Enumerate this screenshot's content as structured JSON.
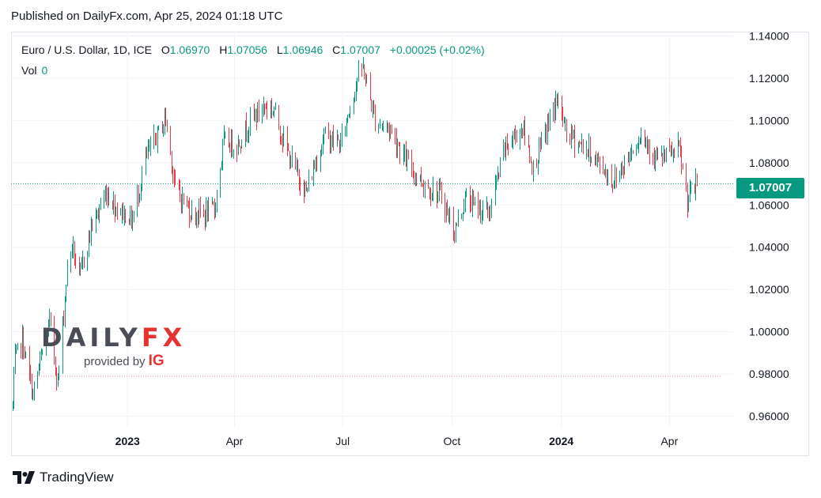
{
  "published": "Published on DailyFx.com, Apr 25, 2024 01:18 UTC",
  "legend": {
    "symbol": "Euro / U.S. Dollar, 1D, ICE",
    "o_label": "O",
    "o_value": "1.06970",
    "h_label": "H",
    "h_value": "1.07056",
    "l_label": "L",
    "l_value": "1.06946",
    "c_label": "C",
    "c_value": "1.07007",
    "change": "+0.00025 (+0.02%)"
  },
  "vol": {
    "label": "Vol",
    "value": "0"
  },
  "last_price_tag": "1.07007",
  "logo": {
    "brand_a": "DAILY",
    "brand_b": "FX",
    "provided_by": "provided by",
    "ig": "IG"
  },
  "footer": {
    "brand": "TradingView"
  },
  "colors": {
    "up": "#089981",
    "down": "#f23645",
    "grid": "#f0f3fa",
    "text": "#131722"
  },
  "chart_data": {
    "type": "candlestick",
    "title": "",
    "xlabel": "",
    "ylabel": "",
    "ylim": [
      0.955,
      1.142
    ],
    "y_ticks": [
      "1.14000",
      "1.12000",
      "1.10000",
      "1.08000",
      "1.06000",
      "1.04000",
      "1.02000",
      "1.00000",
      "0.98000",
      "0.96000"
    ],
    "y_tick_values": [
      1.14,
      1.12,
      1.1,
      1.08,
      1.06,
      1.04,
      1.02,
      1.0,
      0.98,
      0.96
    ],
    "x_ticks": [
      {
        "label": "2023",
        "date": "2023-01-01",
        "bold": true
      },
      {
        "label": "Apr",
        "date": "2023-04-01",
        "bold": false
      },
      {
        "label": "Jul",
        "date": "2023-07-01",
        "bold": false
      },
      {
        "label": "Oct",
        "date": "2023-10-01",
        "bold": false
      },
      {
        "label": "2024",
        "date": "2024-01-01",
        "bold": true
      },
      {
        "label": "Apr",
        "date": "2024-04-01",
        "bold": false
      }
    ],
    "x_range": [
      "2022-09-25",
      "2024-05-24"
    ],
    "last_close": 1.07007,
    "reference_low": 0.979,
    "price_path": [
      [
        "2022-09-26",
        0.965
      ],
      [
        "2022-09-28",
        0.987
      ],
      [
        "2022-10-04",
        0.996
      ],
      [
        "2022-10-13",
        0.97
      ],
      [
        "2022-10-21",
        0.99
      ],
      [
        "2022-10-27",
        1.005
      ],
      [
        "2022-11-03",
        0.976
      ],
      [
        "2022-11-11",
        1.03
      ],
      [
        "2022-11-15",
        1.041
      ],
      [
        "2022-11-21",
        1.025
      ],
      [
        "2022-12-01",
        1.049
      ],
      [
        "2022-12-14",
        1.066
      ],
      [
        "2022-12-22",
        1.059
      ],
      [
        "2023-01-05",
        1.053
      ],
      [
        "2023-01-16",
        1.082
      ],
      [
        "2023-02-02",
        1.101
      ],
      [
        "2023-02-10",
        1.068
      ],
      [
        "2023-02-24",
        1.056
      ],
      [
        "2023-03-08",
        1.056
      ],
      [
        "2023-03-15",
        1.058
      ],
      [
        "2023-03-23",
        1.09
      ],
      [
        "2023-04-03",
        1.088
      ],
      [
        "2023-04-14",
        1.1
      ],
      [
        "2023-04-26",
        1.107
      ],
      [
        "2023-05-04",
        1.105
      ],
      [
        "2023-05-15",
        1.085
      ],
      [
        "2023-05-31",
        1.066
      ],
      [
        "2023-06-15",
        1.093
      ],
      [
        "2023-06-29",
        1.089
      ],
      [
        "2023-07-13",
        1.12
      ],
      [
        "2023-07-18",
        1.125
      ],
      [
        "2023-07-28",
        1.1
      ],
      [
        "2023-08-10",
        1.096
      ],
      [
        "2023-08-24",
        1.08
      ],
      [
        "2023-09-07",
        1.07
      ],
      [
        "2023-09-22",
        1.064
      ],
      [
        "2023-10-03",
        1.047
      ],
      [
        "2023-10-12",
        1.063
      ],
      [
        "2023-10-20",
        1.06
      ],
      [
        "2023-11-01",
        1.056
      ],
      [
        "2023-11-14",
        1.087
      ],
      [
        "2023-11-29",
        1.097
      ],
      [
        "2023-12-08",
        1.077
      ],
      [
        "2023-12-28",
        1.11
      ],
      [
        "2024-01-05",
        1.094
      ],
      [
        "2024-01-23",
        1.086
      ],
      [
        "2024-02-14",
        1.071
      ],
      [
        "2024-03-08",
        1.094
      ],
      [
        "2024-03-22",
        1.081
      ],
      [
        "2024-04-09",
        1.086
      ],
      [
        "2024-04-16",
        1.062
      ],
      [
        "2024-04-24",
        1.07
      ]
    ]
  }
}
